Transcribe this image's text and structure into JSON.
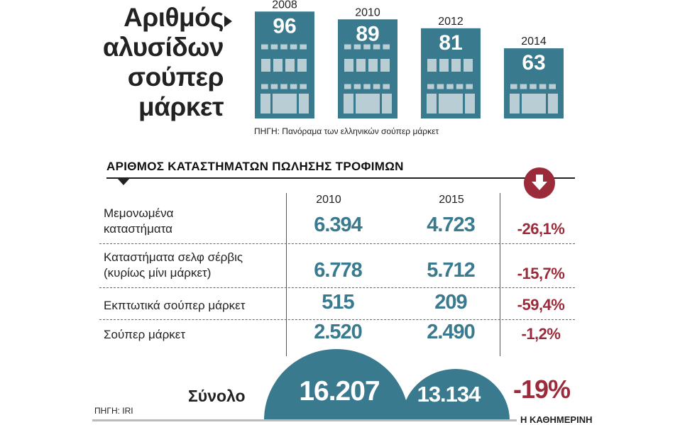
{
  "title_lines": [
    "Αριθμός",
    "αλυσίδων",
    "σούπερ",
    "μάρκετ"
  ],
  "top_source": "ΠΗΓΗ: Πανόραμα των ελληνικών σούπερ μάρκετ",
  "colors": {
    "building": "#3a7a8e",
    "building_light": "#b9cdd4",
    "decline": "#9b2a3a",
    "text": "#222222"
  },
  "section": {
    "heading": "ΑΡΙΘΜΟΣ ΚΑΤΑΣΤΗΜΑΤΩΝ ΠΩΛΗΣΗΣ ΤΡΟΦΙΜΩΝ",
    "badge_icon": "down-arrow-icon",
    "col_2010": "2010",
    "col_2015": "2015"
  },
  "rows": [
    {
      "label_lines": [
        "Μεμονωμένα",
        "καταστήματα"
      ],
      "v2010": "6.394",
      "v2015": "4.723",
      "change": "-26,1%"
    },
    {
      "label_lines": [
        "Καταστήματα σελφ σέρβις",
        "(κυρίως μίνι μάρκετ)"
      ],
      "v2010": "6.778",
      "v2015": "5.712",
      "change": "-15,7%"
    },
    {
      "label_lines": [
        "Εκπτωτικά σούπερ μάρκετ"
      ],
      "v2010": "515",
      "v2015": "209",
      "change": "-59,4%"
    },
    {
      "label_lines": [
        "Σούπερ μάρκετ"
      ],
      "v2010": "2.520",
      "v2015": "2.490",
      "change": "-1,2%"
    }
  ],
  "total": {
    "label": "Σύνολο",
    "v2010": "16.207",
    "v2015": "13.134",
    "change": "-19%"
  },
  "bottom_source": "ΠΗΓΗ: IRI",
  "brand": "Η ΚΑΘΗΜΕΡΙΝΗ",
  "chart_data": [
    {
      "type": "bar",
      "title": "Αριθμός αλυσίδων σούπερ μάρκετ",
      "categories": [
        "2008",
        "2010",
        "2012",
        "2014"
      ],
      "values": [
        96,
        89,
        81,
        63
      ],
      "source": "ΠΗΓΗ: Πανόραμα των ελληνικών σούπερ μάρκετ"
    },
    {
      "type": "table",
      "title": "ΑΡΙΘΜΟΣ ΚΑΤΑΣΤΗΜΑΤΩΝ ΠΩΛΗΣΗΣ ΤΡΟΦΙΜΩΝ",
      "categories": [
        "Μεμονωμένα καταστήματα",
        "Καταστήματα σελφ σέρβις (κυρίως μίνι μάρκετ)",
        "Εκπτωτικά σούπερ μάρκετ",
        "Σούπερ μάρκετ",
        "Σύνολο"
      ],
      "series": [
        {
          "name": "2010",
          "values": [
            6394,
            6778,
            515,
            2520,
            16207
          ]
        },
        {
          "name": "2015",
          "values": [
            4723,
            5712,
            209,
            2490,
            13134
          ]
        }
      ],
      "change_percent": [
        -26.1,
        -15.7,
        -59.4,
        -1.2,
        -19
      ],
      "source": "ΠΗΓΗ: IRI"
    }
  ]
}
